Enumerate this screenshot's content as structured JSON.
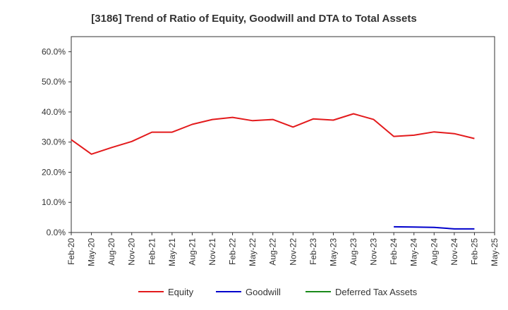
{
  "chart_data": {
    "type": "line",
    "title": "[3186]  Trend of Ratio of Equity, Goodwill and DTA to Total Assets",
    "xlabel": "",
    "ylabel": "",
    "ylim": [
      0,
      65
    ],
    "yticks": [
      0,
      10,
      20,
      30,
      40,
      50,
      60
    ],
    "ytick_labels": [
      "0.0%",
      "10.0%",
      "20.0%",
      "30.0%",
      "40.0%",
      "50.0%",
      "60.0%"
    ],
    "x_labels": [
      "Feb-20",
      "May-20",
      "Aug-20",
      "Nov-20",
      "Feb-21",
      "May-21",
      "Aug-21",
      "Nov-21",
      "Feb-22",
      "May-22",
      "Aug-22",
      "Nov-22",
      "Feb-23",
      "May-23",
      "Aug-23",
      "Nov-23",
      "Feb-24",
      "May-24",
      "Aug-24",
      "Nov-24",
      "Feb-25",
      "May-25"
    ],
    "grid": true,
    "legend_position": "bottom",
    "series": [
      {
        "name": "Equity",
        "color": "#e31a1c",
        "values": [
          30.8,
          26.0,
          28.2,
          30.2,
          33.3,
          33.3,
          35.9,
          37.5,
          38.2,
          37.1,
          37.5,
          35.0,
          37.7,
          37.3,
          39.4,
          37.5,
          31.9,
          32.3,
          33.4,
          32.8,
          31.2,
          null
        ]
      },
      {
        "name": "Goodwill",
        "color": "#0000cc",
        "values": [
          null,
          null,
          null,
          null,
          null,
          null,
          null,
          null,
          null,
          null,
          null,
          null,
          null,
          null,
          null,
          null,
          1.9,
          1.8,
          1.7,
          1.2,
          1.2,
          null
        ]
      },
      {
        "name": "Deferred Tax Assets",
        "color": "#1a8a1a",
        "values": [
          null,
          null,
          null,
          null,
          null,
          null,
          null,
          null,
          null,
          null,
          null,
          null,
          null,
          null,
          null,
          null,
          null,
          null,
          null,
          null,
          null,
          null
        ]
      }
    ]
  }
}
